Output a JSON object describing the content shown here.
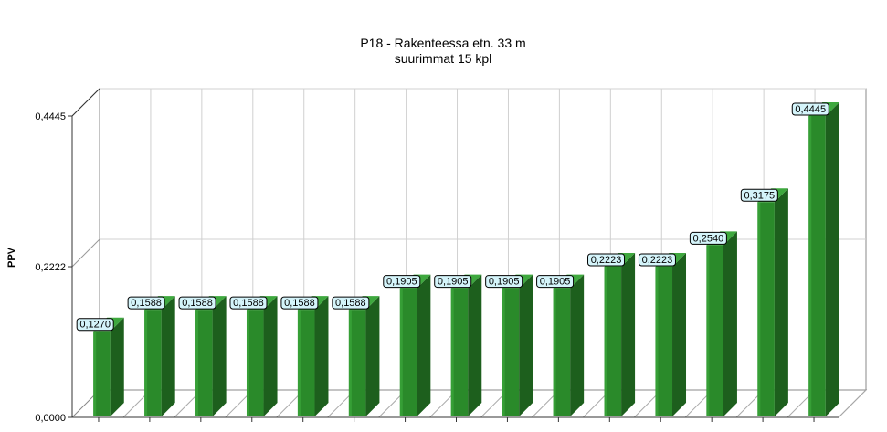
{
  "chart_data": {
    "type": "bar",
    "title": "P18 - Rakenteessa etn. 33 m",
    "subtitle": "suurimmat 15 kpl",
    "ylabel": "PPV",
    "xlabel": "",
    "ylim": [
      0,
      0.4445
    ],
    "yticks": [
      "0,0000",
      "0,2222",
      "0,4445"
    ],
    "categories": [],
    "values": [
      0.127,
      0.1588,
      0.1588,
      0.1588,
      0.1588,
      0.1588,
      0.1905,
      0.1905,
      0.1905,
      0.1905,
      0.2223,
      0.2223,
      0.254,
      0.3175,
      0.4445
    ],
    "labels": [
      "0,1270",
      "0,1588",
      "0,1588",
      "0,1588",
      "0,1588",
      "0,1588",
      "0,1905",
      "0,1905",
      "0,1905",
      "0,1905",
      "0,2223",
      "0,2223",
      "0,2540",
      "0,3175",
      "0,4445"
    ],
    "grid": true,
    "legend": "none",
    "colors": {
      "bar_front": "#2a8a2a",
      "bar_side": "#1d5f1d",
      "bar_top": "#3ea83e",
      "label_fill": "#d4f4fa",
      "grid": "#d0d0d0"
    }
  }
}
